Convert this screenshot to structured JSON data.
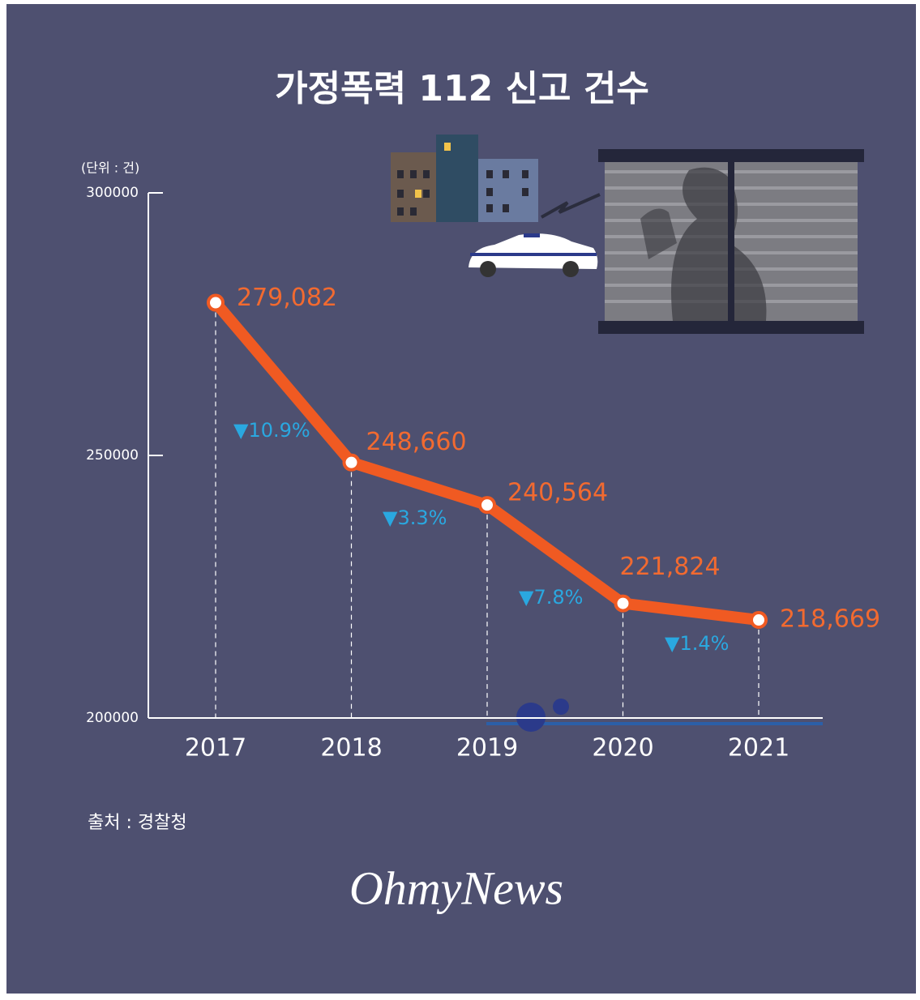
{
  "chart_data": {
    "type": "line",
    "title": "가정폭력 112 신고 건수",
    "unit_label": "(단위 : 건)",
    "categories": [
      "2017",
      "2018",
      "2019",
      "2020",
      "2021"
    ],
    "values": [
      279082,
      248660,
      240564,
      221824,
      218669
    ],
    "value_labels": [
      "279,082",
      "248,660",
      "240,564",
      "221,824",
      "218,669"
    ],
    "color": "#f05a22",
    "ylim": [
      200000,
      300000
    ],
    "yticks": [
      200000,
      250000,
      300000
    ],
    "annotations": [
      "▼10.9%",
      "▼3.3%",
      "▼7.8%",
      "▼1.4%"
    ],
    "source": "출처 : 경찰청",
    "logo": "OhmyNews"
  }
}
